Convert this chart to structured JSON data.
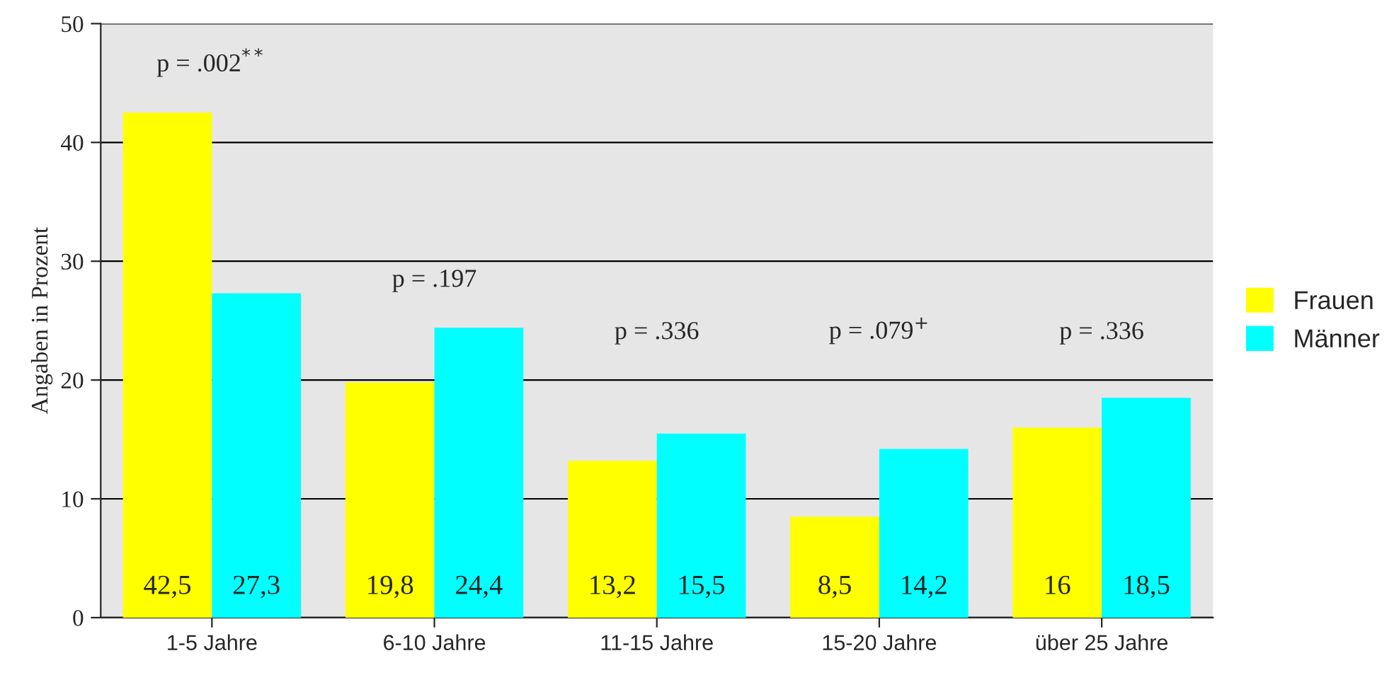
{
  "chart_data": {
    "type": "bar",
    "ylabel": "Angaben in Prozent",
    "categories": [
      "1-5 Jahre",
      "6-10 Jahre",
      "11-15 Jahre",
      "15-20 Jahre",
      "über 25 Jahre"
    ],
    "series": [
      {
        "name": "Frauen",
        "color": "#ffff00",
        "values": [
          42.5,
          19.8,
          13.2,
          8.5,
          16
        ],
        "value_labels": [
          "42,5",
          "19,8",
          "13,2",
          "8,5",
          "16"
        ]
      },
      {
        "name": "Männer",
        "color": "#00ffff",
        "values": [
          27.3,
          24.4,
          15.5,
          14.2,
          18.5
        ],
        "value_labels": [
          "27,3",
          "24,4",
          "15,5",
          "14,2",
          "18,5"
        ]
      }
    ],
    "ylim": [
      0,
      50
    ],
    "yticks": [
      0,
      10,
      20,
      30,
      40,
      50
    ],
    "grid": "y",
    "legend": "right",
    "annotations": [
      "p = .002$^{**}$",
      "p = .197",
      "p = .336",
      "p = .079$^{+}$",
      "p = .336"
    ]
  }
}
